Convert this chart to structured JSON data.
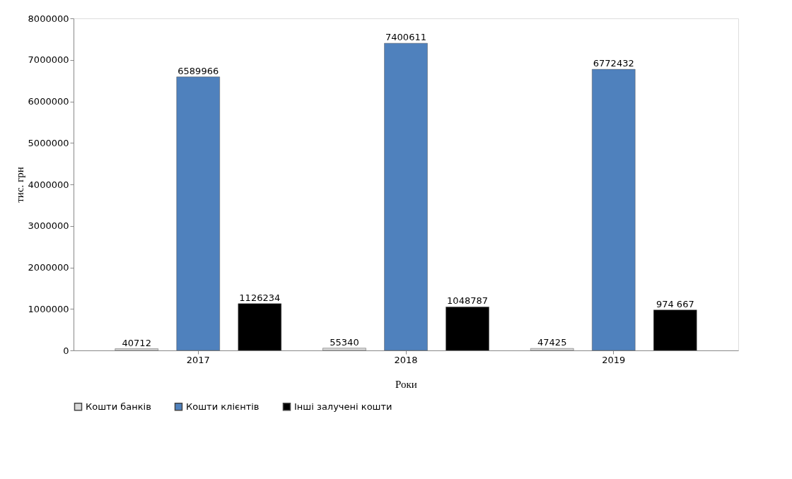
{
  "chart_data": {
    "type": "bar",
    "xlabel": "Роки",
    "ylabel": "тис. грн",
    "categories": [
      "2017",
      "2018",
      "2019"
    ],
    "series": [
      {
        "name": "Кошти банків",
        "color": "#d9d9d9",
        "values": [
          40712,
          55340,
          47425
        ],
        "value_labels": [
          "40712",
          "55340",
          "47425"
        ]
      },
      {
        "name": "Кошти клієнтів",
        "color": "#4f81bd",
        "values": [
          6589966,
          7400611,
          6772432
        ],
        "value_labels": [
          "6589966",
          "7400611",
          "6772432"
        ]
      },
      {
        "name": "Інші залучені кошти",
        "color": "#000000",
        "values": [
          1126234,
          1048787,
          974667
        ],
        "value_labels": [
          "1126234",
          "1048787",
          "974 667"
        ]
      }
    ],
    "ylim": [
      0,
      8000000
    ],
    "yticks": [
      0,
      1000000,
      2000000,
      3000000,
      4000000,
      5000000,
      6000000,
      7000000,
      8000000
    ],
    "grid": false,
    "legend": "bottom"
  }
}
